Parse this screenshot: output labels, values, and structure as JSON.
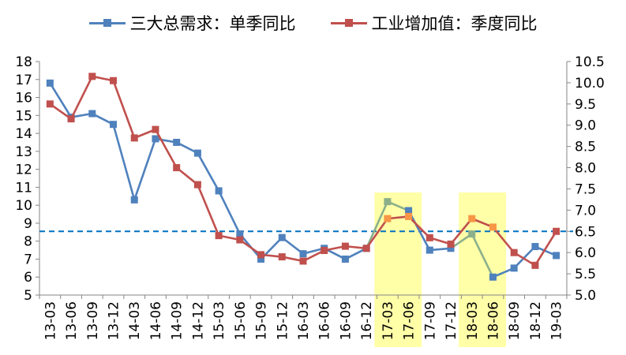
{
  "chart_data": {
    "type": "line",
    "categories": [
      "13-03",
      "13-06",
      "13-09",
      "13-12",
      "14-03",
      "14-06",
      "14-09",
      "14-12",
      "15-03",
      "15-06",
      "15-09",
      "15-12",
      "16-03",
      "16-06",
      "16-09",
      "16-12",
      "17-03",
      "17-06",
      "17-09",
      "17-12",
      "18-03",
      "18-06",
      "18-09",
      "18-12",
      "19-03"
    ],
    "series": [
      {
        "name": "三大总需求：单季同比",
        "axis": "left",
        "color": "#4F81BD",
        "values": [
          16.8,
          14.9,
          15.1,
          14.5,
          10.3,
          13.7,
          13.5,
          12.9,
          10.8,
          8.4,
          7.0,
          8.2,
          7.3,
          7.6,
          7.0,
          7.6,
          10.2,
          9.7,
          7.5,
          7.6,
          8.4,
          6.0,
          6.5,
          7.7,
          7.2
        ],
        "highlight_color": "#8BB08A",
        "highlight_segments": [
          [
            15,
            17
          ],
          [
            19,
            21
          ]
        ]
      },
      {
        "name": "工业增加值：季度同比",
        "axis": "right",
        "color": "#C0504D",
        "values": [
          9.5,
          9.15,
          10.15,
          10.05,
          8.7,
          8.9,
          8.0,
          7.6,
          6.4,
          6.3,
          5.95,
          5.9,
          5.8,
          6.05,
          6.15,
          6.1,
          6.8,
          6.85,
          6.35,
          6.2,
          6.8,
          6.6,
          6.0,
          5.7,
          6.5
        ],
        "highlight_color": "#F79646",
        "highlight_points": [
          16,
          17,
          20,
          21
        ]
      }
    ],
    "y_left": {
      "min": 5,
      "max": 18,
      "step": 1
    },
    "y_right": {
      "min": 5.0,
      "max": 10.5,
      "step": 0.5
    },
    "reference_line": {
      "axis": "right",
      "value": 6.5,
      "color": "#0070C0",
      "style": "dashed"
    },
    "highlight_bands": [
      {
        "from": "17-03",
        "to": "17-06",
        "color": "#FFFF99"
      },
      {
        "from": "18-03",
        "to": "18-06",
        "color": "#FFFF99"
      }
    ],
    "legend_position": "top",
    "grid": false
  },
  "legend": {
    "items": [
      {
        "label": "三大总需求：单季同比",
        "color": "#4F81BD"
      },
      {
        "label": "工业增加值：季度同比",
        "color": "#C0504D"
      }
    ]
  }
}
